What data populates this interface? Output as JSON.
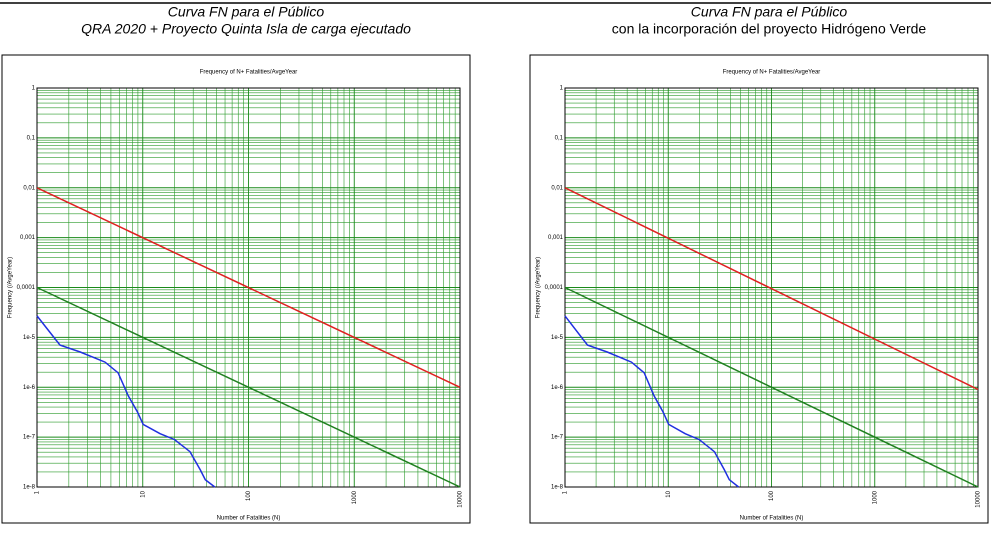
{
  "chart_data": [
    {
      "type": "line",
      "title": "Curva FN para el Público",
      "subtitle": "QRA 2020 + Proyecto Quinta Isla de carga ejecutado",
      "plot_title": "Frequency of N+ Fatalities/AvgeYear",
      "xlabel": "Number of Fatalities (N)",
      "ylabel": "Frequency (/AvgeYear)",
      "xscale": "log",
      "yscale": "log",
      "grid": true,
      "minor_grid": true,
      "xlim": [
        1,
        10000
      ],
      "ylim": [
        1e-08,
        1
      ],
      "xticks": [
        1,
        10,
        100,
        1000,
        10000
      ],
      "yticks": [
        1,
        {
          "value": 0.1,
          "label": "0,1"
        },
        {
          "value": 0.01,
          "label": "0,01"
        },
        {
          "value": 0.001,
          "label": "0,001"
        },
        {
          "value": 0.0001,
          "label": "0,0001"
        },
        {
          "value": 1e-05,
          "label": "1e-5"
        },
        {
          "value": 1e-06,
          "label": "1e-6"
        },
        {
          "value": 1e-07,
          "label": "1e-7"
        },
        {
          "value": 1e-08,
          "label": "1e-8"
        }
      ],
      "series": [
        {
          "color": "#e02020",
          "x": [
            1,
            10000
          ],
          "values": [
            0.01,
            1e-06
          ]
        },
        {
          "color": "#208020",
          "x": [
            1,
            10000
          ],
          "values": [
            0.0001,
            1e-08
          ]
        },
        {
          "color": "#2030e0",
          "x": [
            1,
            1.65,
            2.56,
            4.4,
            5.85,
            7.3,
            8.9,
            10.1,
            14.6,
            20,
            28,
            35,
            39,
            48
          ],
          "values": [
            2.7e-05,
            7e-06,
            5.1e-06,
            3.2e-06,
            1.95e-06,
            6.7e-07,
            3.2e-07,
            1.8e-07,
            1.17e-07,
            8.9e-08,
            5.1e-08,
            2.2e-08,
            1.4e-08,
            1e-08
          ]
        }
      ]
    },
    {
      "type": "line",
      "title": "Curva FN para el Público",
      "subtitle": "con la incorporación del proyecto Hidrógeno Verde",
      "plot_title": "Frequency of N+ Fatalities/AvgeYear",
      "xlabel": "Number of Fatalities (N)",
      "ylabel": "Frequency (/AvgeYear)",
      "xscale": "log",
      "yscale": "log",
      "grid": true,
      "minor_grid": true,
      "xlim": [
        1,
        10000
      ],
      "ylim": [
        1e-08,
        1
      ],
      "xticks": [
        1,
        10,
        100,
        1000,
        10000
      ],
      "yticks": [
        1,
        {
          "value": 0.1,
          "label": "0,1"
        },
        {
          "value": 0.01,
          "label": "0,01"
        },
        {
          "value": 0.001,
          "label": "0,001"
        },
        {
          "value": 0.0001,
          "label": "0,0001"
        },
        {
          "value": 1e-05,
          "label": "1e-5"
        },
        {
          "value": 1e-06,
          "label": "1e-6"
        },
        {
          "value": 1e-07,
          "label": "1e-7"
        },
        {
          "value": 1e-08,
          "label": "1e-8"
        }
      ],
      "series": [
        {
          "color": "#e02020",
          "x": [
            1,
            10000
          ],
          "values": [
            0.01,
            9e-07
          ]
        },
        {
          "color": "#208020",
          "x": [
            1,
            10000
          ],
          "values": [
            0.0001,
            1e-08
          ]
        },
        {
          "color": "#2030e0",
          "x": [
            1,
            1.65,
            2.56,
            4.4,
            5.85,
            7.3,
            8.9,
            10.1,
            14.6,
            20,
            28,
            35,
            39,
            48
          ],
          "values": [
            2.7e-05,
            7e-06,
            5.1e-06,
            3.2e-06,
            1.95e-06,
            6.7e-07,
            3.2e-07,
            1.8e-07,
            1.17e-07,
            8.9e-08,
            5.1e-08,
            2.2e-08,
            1.4e-08,
            1e-08
          ]
        }
      ]
    }
  ]
}
